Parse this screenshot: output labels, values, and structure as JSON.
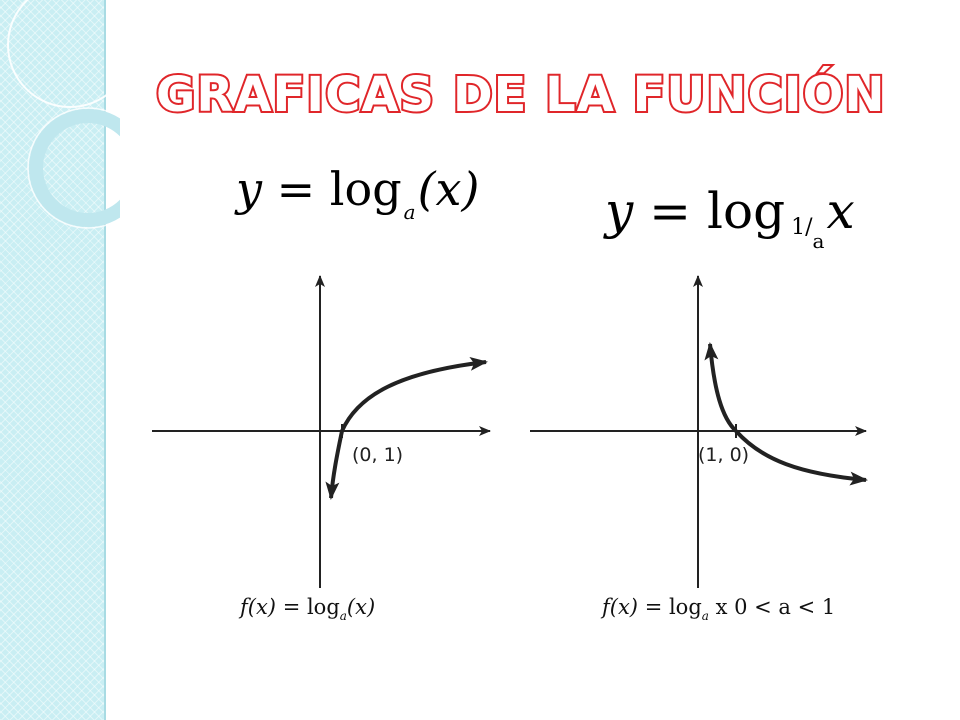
{
  "slide": {
    "title": "GRAFICAS DE LA FUNCIÓN",
    "colors": {
      "title_stroke": "#e0262a",
      "sidebar": "#c9eef3"
    }
  },
  "formulas": [
    {
      "y": "y",
      "eq": "=",
      "log": "log",
      "base": "a",
      "arg": "(x)"
    },
    {
      "y": "y",
      "eq": "=",
      "log": "log",
      "base_num": "1/",
      "base_den": "a",
      "arg": "x"
    }
  ],
  "graphs": [
    {
      "point_label": "(0, 1)",
      "caption": {
        "f": "f(x)",
        "eq": " = log",
        "base": "a",
        "arg": "(x)"
      },
      "curve": "increasing"
    },
    {
      "point_label": "(1, 0)",
      "caption": {
        "f": "f(x)",
        "eq": " = log",
        "base": "a",
        "arg": " x 0 < a < 1"
      },
      "curve": "decreasing"
    }
  ]
}
